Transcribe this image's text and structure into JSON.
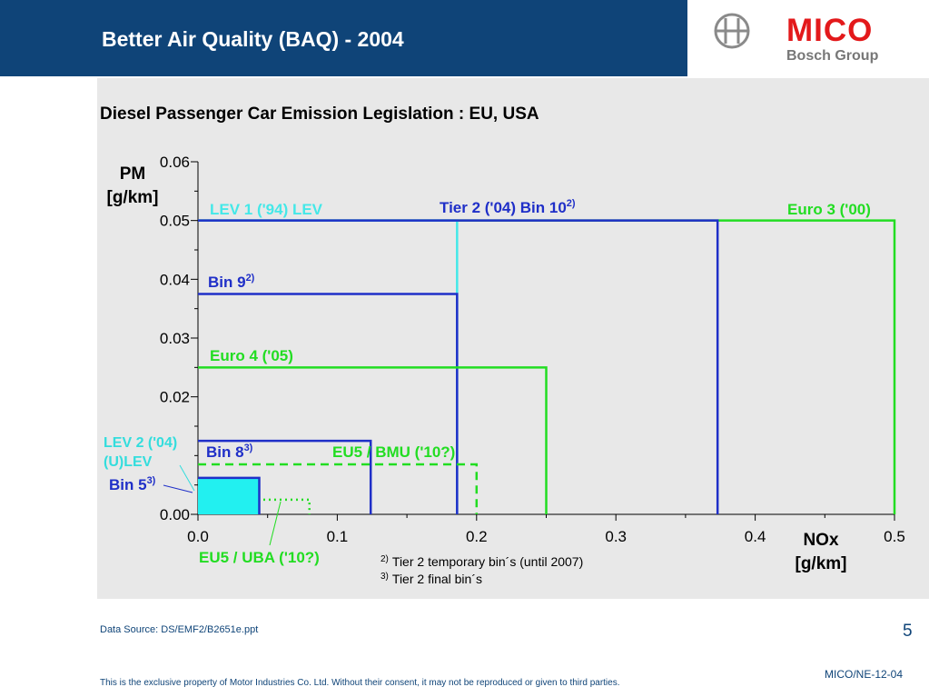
{
  "header": {
    "title": "Better Air Quality (BAQ) - 2004"
  },
  "brand": {
    "name": "MICO",
    "subtitle": "Bosch Group",
    "logo_icon": "bosch-armature-icon"
  },
  "chart_data": {
    "type": "area",
    "title": "Diesel Passenger Car Emission  Legislation : EU, USA",
    "ylabel": [
      "PM",
      "[g/km]"
    ],
    "xlabel": [
      "NOx",
      "[g/km]"
    ],
    "xlim": [
      0.0,
      0.5
    ],
    "ylim": [
      0.0,
      0.06
    ],
    "xticks": [
      "0.0",
      "0.1",
      "0.2",
      "0.3",
      "0.4",
      "0.5"
    ],
    "yticks": [
      "0.00",
      "0.02",
      "0.03",
      "0.04",
      "0.05",
      "0.06"
    ],
    "regions": [
      {
        "label": "Euro 3 ('00)",
        "nox": 0.5,
        "pm": 0.05,
        "color": "#22dd22",
        "style": "solid"
      },
      {
        "label": "LEV 1 ('94) LEV",
        "nox": 0.186,
        "pm": 0.05,
        "color": "#44e8e8",
        "style": "solid"
      },
      {
        "label": "Tier 2 ('04) Bin 10",
        "sup": "2)",
        "nox": 0.373,
        "pm": 0.05,
        "color": "#1f2fc8",
        "style": "solid"
      },
      {
        "label": "Bin 9",
        "sup": "2)",
        "nox": 0.186,
        "pm": 0.0375,
        "color": "#1f2fc8",
        "style": "solid"
      },
      {
        "label": "Euro 4 ('05)",
        "nox": 0.25,
        "pm": 0.025,
        "color": "#22dd22",
        "style": "solid"
      },
      {
        "label": "Bin 8",
        "sup": "3)",
        "nox": 0.124,
        "pm": 0.0125,
        "color": "#1f2fc8",
        "style": "solid"
      },
      {
        "label": "EU5 / BMU ('10?)",
        "nox": 0.2,
        "pm": 0.0085,
        "color": "#22dd22",
        "style": "dashed"
      },
      {
        "label": "EU5 / UBA ('10?)",
        "nox": 0.08,
        "pm": 0.0025,
        "color": "#22dd22",
        "style": "dotted"
      },
      {
        "label": "Bin 5",
        "sup": "3)",
        "nox": 0.044,
        "pm": 0.0062,
        "color": "#1f2fc8",
        "style": "filled",
        "fill": "#22f0f0"
      }
    ],
    "side_labels": {
      "lev2_line1": "LEV 2 ('04)",
      "lev2_line2": "(U)LEV"
    },
    "footnotes": [
      {
        "sup": "2)",
        "text": "Tier 2 temporary bin´s (until 2007)"
      },
      {
        "sup": "3)",
        "text": "Tier 2 final bin´s"
      }
    ]
  },
  "footer": {
    "source": "Data Source: DS/EMF2/B2651e.ppt",
    "page": "5",
    "code": "MICO/NE-12-04",
    "property": "This is the exclusive property of Motor Industries Co. Ltd. Without their consent, it may not be reproduced or given to third parties."
  }
}
